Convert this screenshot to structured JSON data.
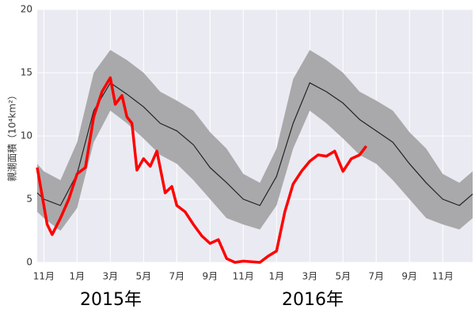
{
  "chart_data": {
    "type": "line",
    "y_label": "親潮面積（10⁴km²）",
    "annotations": [
      "2015年",
      "2016年"
    ],
    "xlim": [
      -0.4,
      25.8
    ],
    "ylim": [
      0,
      20
    ],
    "yticks": [
      0,
      5,
      10,
      15,
      20
    ],
    "xticks": [
      {
        "value": 0,
        "label": "11月"
      },
      {
        "value": 2,
        "label": "1月"
      },
      {
        "value": 4,
        "label": "3月"
      },
      {
        "value": 6,
        "label": "5月"
      },
      {
        "value": 8,
        "label": "7月"
      },
      {
        "value": 10,
        "label": "9月"
      },
      {
        "value": 12,
        "label": "11月"
      },
      {
        "value": 14,
        "label": "1月"
      },
      {
        "value": 16,
        "label": "3月"
      },
      {
        "value": 18,
        "label": "5月"
      },
      {
        "value": 20,
        "label": "7月"
      },
      {
        "value": 22,
        "label": "9月"
      },
      {
        "value": 24,
        "label": "11月"
      }
    ],
    "grid": true,
    "band": {
      "color": "#a9a9ab",
      "x": [
        -0.4,
        0,
        1,
        2,
        3,
        4,
        5,
        6,
        7,
        8,
        9,
        10,
        11,
        12,
        13,
        14,
        15,
        16,
        17,
        18,
        19,
        20,
        21,
        22,
        23,
        24,
        25,
        25.8
      ],
      "lower": [
        4,
        3.5,
        2.5,
        4.3,
        9.5,
        12,
        11,
        9.8,
        8.5,
        7.8,
        6.5,
        5,
        3.5,
        3,
        2.6,
        4.5,
        9,
        12,
        11,
        9.8,
        8.5,
        7.8,
        6.5,
        5,
        3.5,
        3,
        2.6,
        3.5
      ],
      "upper": [
        7.8,
        7.2,
        6.5,
        9.5,
        15,
        16.8,
        16,
        15,
        13.5,
        12.8,
        12,
        10.3,
        9,
        7,
        6.3,
        9,
        14.5,
        16.8,
        16,
        15,
        13.5,
        12.8,
        12,
        10.3,
        9,
        7,
        6.3,
        7.2
      ]
    },
    "series": [
      {
        "color": "#222222",
        "x": [
          -0.4,
          0,
          1,
          2,
          3,
          4,
          5,
          6,
          7,
          8,
          9,
          10,
          11,
          12,
          13,
          14,
          15,
          16,
          17,
          18,
          19,
          20,
          21,
          22,
          23,
          24,
          25,
          25.8
        ],
        "values": [
          5.5,
          5,
          4.5,
          7,
          12,
          14.2,
          13.3,
          12.3,
          11,
          10.4,
          9.3,
          7.5,
          6.3,
          5,
          4.5,
          6.8,
          11,
          14.2,
          13.5,
          12.6,
          11.3,
          10.4,
          9.5,
          7.8,
          6.3,
          5,
          4.5,
          5.4
        ]
      },
      {
        "color": "#ff0000",
        "x": [
          -0.4,
          0.2,
          0.5,
          1,
          1.5,
          2,
          2.5,
          3,
          3.5,
          4,
          4.3,
          4.7,
          5,
          5.3,
          5.6,
          6,
          6.4,
          6.8,
          7.3,
          7.7,
          8,
          8.5,
          9,
          9.5,
          10,
          10.5,
          11,
          11.5,
          12,
          13,
          13.5,
          14,
          14.5,
          15,
          15.5,
          16,
          16.5,
          17,
          17.5,
          18,
          18.5,
          19,
          19.4
        ],
        "values": [
          7.5,
          3,
          2.2,
          3.5,
          5,
          7,
          7.5,
          11.5,
          13.5,
          14.6,
          12.5,
          13.2,
          11.5,
          11,
          7.3,
          8.2,
          7.6,
          8.8,
          5.5,
          6,
          4.5,
          4,
          3,
          2.1,
          1.5,
          1.8,
          0.3,
          0,
          0.1,
          0,
          0.5,
          0.9,
          4,
          6.2,
          7.2,
          8,
          8.5,
          8.4,
          8.8,
          7.2,
          8.2,
          8.5,
          9.2
        ]
      }
    ]
  }
}
